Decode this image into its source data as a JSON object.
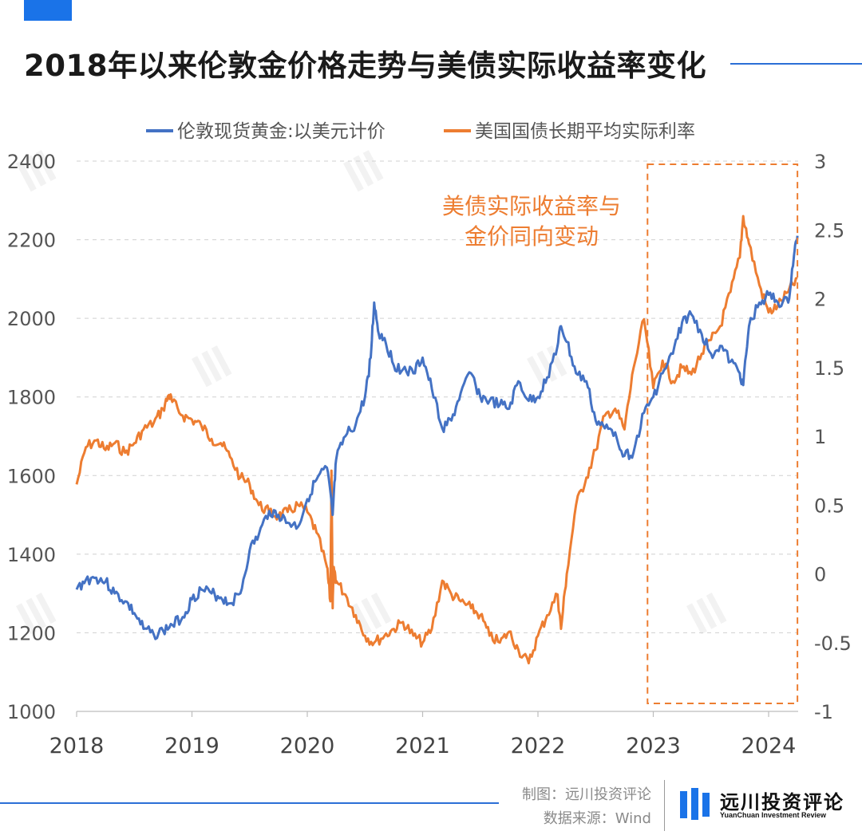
{
  "header": {
    "title": "2018年以来伦敦金价格走势与美债实际收益率变化"
  },
  "colors": {
    "gold": "#4472c4",
    "rate": "#ed7d31",
    "accent": "#1a73e8",
    "grid": "#d0d0d0"
  },
  "footer": {
    "credit_line1": "制图：远川投资评论",
    "credit_line2": "数据来源：Wind",
    "brand_name": "远川投资评论",
    "brand_sub": "YuanChuan Investment Review",
    "brand_icon": "bars-logo-icon"
  },
  "chart_data": {
    "type": "line",
    "legend_position": "top-center",
    "grid": true,
    "x_ticks": [
      "2018",
      "2019",
      "2020",
      "2021",
      "2022",
      "2023",
      "2024"
    ],
    "x_range": [
      2018.0,
      2024.3
    ],
    "y_left": {
      "ticks": [
        "1000",
        "1200",
        "1400",
        "1600",
        "1800",
        "2000",
        "2200",
        "2400"
      ],
      "range": [
        1000,
        2400
      ]
    },
    "y_right": {
      "ticks": [
        "-1",
        "-0.5",
        "0",
        "0.5",
        "1",
        "1.5",
        "2",
        "2.5",
        "3"
      ],
      "range": [
        -1,
        3
      ]
    },
    "annotation": {
      "lines": [
        "美债实际收益率与",
        "金价同向变动"
      ],
      "highlight_x_range": [
        2022.95,
        2024.25
      ]
    },
    "series": [
      {
        "name": "伦敦现货黄金:以美元计价",
        "axis": "left",
        "x": [
          2018.0,
          2018.08,
          2018.17,
          2018.25,
          2018.33,
          2018.42,
          2018.5,
          2018.58,
          2018.67,
          2018.75,
          2018.83,
          2018.92,
          2019.0,
          2019.08,
          2019.17,
          2019.25,
          2019.33,
          2019.42,
          2019.5,
          2019.58,
          2019.67,
          2019.75,
          2019.83,
          2019.92,
          2020.0,
          2020.08,
          2020.17,
          2020.22,
          2020.25,
          2020.33,
          2020.42,
          2020.5,
          2020.55,
          2020.58,
          2020.62,
          2020.67,
          2020.75,
          2020.83,
          2020.92,
          2021.0,
          2021.08,
          2021.17,
          2021.25,
          2021.33,
          2021.42,
          2021.5,
          2021.58,
          2021.67,
          2021.75,
          2021.83,
          2021.92,
          2022.0,
          2022.08,
          2022.17,
          2022.2,
          2022.25,
          2022.33,
          2022.42,
          2022.5,
          2022.58,
          2022.67,
          2022.75,
          2022.83,
          2022.92,
          2023.0,
          2023.08,
          2023.17,
          2023.25,
          2023.33,
          2023.42,
          2023.5,
          2023.58,
          2023.67,
          2023.75,
          2023.78,
          2023.83,
          2023.92,
          2024.0,
          2024.08,
          2024.17,
          2024.22,
          2024.25
        ],
        "y": [
          1310,
          1335,
          1340,
          1330,
          1300,
          1280,
          1250,
          1210,
          1195,
          1205,
          1220,
          1240,
          1285,
          1310,
          1300,
          1290,
          1275,
          1300,
          1410,
          1450,
          1510,
          1500,
          1480,
          1470,
          1540,
          1590,
          1620,
          1500,
          1640,
          1700,
          1730,
          1800,
          1900,
          2040,
          1960,
          1950,
          1880,
          1870,
          1860,
          1900,
          1820,
          1720,
          1740,
          1810,
          1860,
          1800,
          1790,
          1780,
          1770,
          1840,
          1790,
          1800,
          1850,
          1930,
          1980,
          1940,
          1860,
          1840,
          1740,
          1720,
          1710,
          1650,
          1660,
          1760,
          1800,
          1860,
          1910,
          1990,
          2010,
          1960,
          1910,
          1930,
          1890,
          1860,
          1830,
          1980,
          2040,
          2060,
          2040,
          2040,
          2160,
          2210
        ]
      },
      {
        "name": "美国国债长期平均实际利率",
        "axis": "right",
        "x": [
          2018.0,
          2018.08,
          2018.17,
          2018.25,
          2018.33,
          2018.42,
          2018.5,
          2018.58,
          2018.67,
          2018.75,
          2018.8,
          2018.83,
          2018.92,
          2019.0,
          2019.08,
          2019.17,
          2019.25,
          2019.33,
          2019.42,
          2019.5,
          2019.58,
          2019.67,
          2019.75,
          2019.83,
          2019.92,
          2020.0,
          2020.08,
          2020.17,
          2020.2,
          2020.21,
          2020.22,
          2020.23,
          2020.25,
          2020.33,
          2020.42,
          2020.5,
          2020.58,
          2020.67,
          2020.75,
          2020.83,
          2020.92,
          2021.0,
          2021.08,
          2021.17,
          2021.25,
          2021.33,
          2021.42,
          2021.5,
          2021.58,
          2021.67,
          2021.75,
          2021.83,
          2021.92,
          2022.0,
          2022.08,
          2022.17,
          2022.2,
          2022.25,
          2022.33,
          2022.42,
          2022.5,
          2022.58,
          2022.67,
          2022.75,
          2022.83,
          2022.92,
          2023.0,
          2023.08,
          2023.17,
          2023.25,
          2023.33,
          2023.42,
          2023.5,
          2023.58,
          2023.67,
          2023.75,
          2023.78,
          2023.83,
          2023.92,
          2024.0,
          2024.08,
          2024.17,
          2024.25
        ],
        "y": [
          0.65,
          0.92,
          0.97,
          0.9,
          0.95,
          0.88,
          0.95,
          1.05,
          1.1,
          1.2,
          1.3,
          1.25,
          1.15,
          1.12,
          1.08,
          0.98,
          0.95,
          0.85,
          0.7,
          0.65,
          0.5,
          0.45,
          0.42,
          0.45,
          0.5,
          0.45,
          0.3,
          0.05,
          -0.2,
          0.75,
          -0.25,
          0.05,
          -0.05,
          -0.15,
          -0.3,
          -0.45,
          -0.5,
          -0.45,
          -0.4,
          -0.35,
          -0.45,
          -0.5,
          -0.4,
          -0.05,
          -0.15,
          -0.2,
          -0.25,
          -0.3,
          -0.45,
          -0.5,
          -0.42,
          -0.55,
          -0.65,
          -0.45,
          -0.3,
          -0.15,
          -0.4,
          0.0,
          0.5,
          0.7,
          0.9,
          1.15,
          1.2,
          1.05,
          1.5,
          1.85,
          1.35,
          1.55,
          1.4,
          1.5,
          1.45,
          1.6,
          1.7,
          1.8,
          2.05,
          2.3,
          2.6,
          2.4,
          2.1,
          1.9,
          1.95,
          2.05,
          2.15
        ]
      }
    ]
  }
}
